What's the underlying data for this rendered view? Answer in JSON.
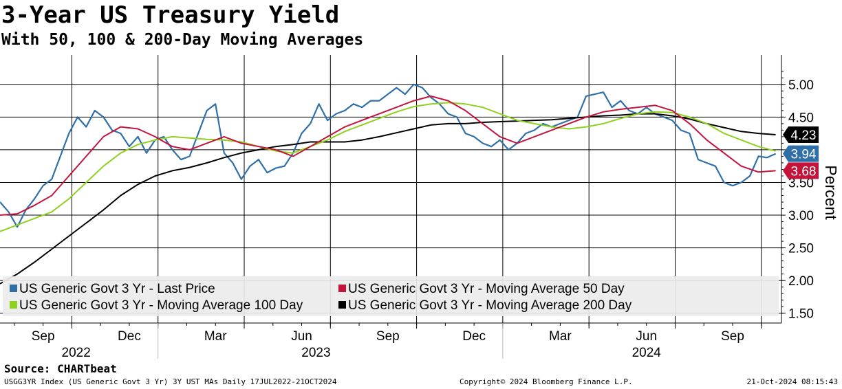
{
  "title": "3-Year US Treasury Yield",
  "subtitle": "With 50, 100 & 200-Day Moving Averages",
  "source": "Source: CHARTbeat",
  "footer": {
    "left": "USGG3YR Index (US Generic Govt 3 Yr) 3Y UST MAs  Daily 17JUL2022-21OCT2024",
    "middle": "Copyright© 2024 Bloomberg Finance L.P.",
    "right": "21-Oct-2024 08:15:43"
  },
  "chart_data": {
    "type": "line",
    "ylabel": "Percent",
    "ylim": [
      1.35,
      5.45
    ],
    "xlim": [
      0,
      27.2
    ],
    "x_unit": "months since 2022-07-17",
    "yticks": [
      1.5,
      2.0,
      2.5,
      3.0,
      3.5,
      4.0,
      4.5,
      5.0
    ],
    "ytick_labels": [
      "1.50",
      "2.00",
      "2.50",
      "3.00",
      "3.50",
      "4.00",
      "4.50",
      "5.00"
    ],
    "month_ticks": [
      {
        "label": "Sep",
        "x": 1.5
      },
      {
        "label": "Dec",
        "x": 4.5
      },
      {
        "label": "Mar",
        "x": 7.5
      },
      {
        "label": "Jun",
        "x": 10.5
      },
      {
        "label": "Sep",
        "x": 13.5
      },
      {
        "label": "Dec",
        "x": 16.5
      },
      {
        "label": "Mar",
        "x": 19.5
      },
      {
        "label": "Jun",
        "x": 22.5
      },
      {
        "label": "Sep",
        "x": 25.5
      }
    ],
    "month_gridlines": [
      2.5,
      5.5,
      8.5,
      11.5,
      14.5,
      17.5,
      20.5,
      23.5,
      26.5
    ],
    "year_labels": [
      {
        "label": "2022",
        "x": 2.65
      },
      {
        "label": "2023",
        "x": 11.0
      },
      {
        "label": "2024",
        "x": 22.5
      }
    ],
    "year_separators": [
      5.5,
      17.5
    ],
    "series": [
      {
        "name": "US Generic Govt 3 Yr  - Last Price",
        "color": "#2f6fa8",
        "last_label": "3.94",
        "points": [
          [
            0,
            3.2
          ],
          [
            0.3,
            3.05
          ],
          [
            0.6,
            2.82
          ],
          [
            0.9,
            3.08
          ],
          [
            1.2,
            3.25
          ],
          [
            1.5,
            3.45
          ],
          [
            1.8,
            3.55
          ],
          [
            2.1,
            3.9
          ],
          [
            2.4,
            4.25
          ],
          [
            2.7,
            4.5
          ],
          [
            3.0,
            4.35
          ],
          [
            3.3,
            4.6
          ],
          [
            3.6,
            4.5
          ],
          [
            3.9,
            4.3
          ],
          [
            4.2,
            4.25
          ],
          [
            4.5,
            4.05
          ],
          [
            4.8,
            4.2
          ],
          [
            5.1,
            3.95
          ],
          [
            5.4,
            4.15
          ],
          [
            5.7,
            4.2
          ],
          [
            6.0,
            4.0
          ],
          [
            6.3,
            3.85
          ],
          [
            6.6,
            3.9
          ],
          [
            6.9,
            4.25
          ],
          [
            7.2,
            4.6
          ],
          [
            7.5,
            4.7
          ],
          [
            7.8,
            3.95
          ],
          [
            8.1,
            3.8
          ],
          [
            8.4,
            3.55
          ],
          [
            8.7,
            3.75
          ],
          [
            9.0,
            3.85
          ],
          [
            9.3,
            3.65
          ],
          [
            9.6,
            3.72
          ],
          [
            9.9,
            3.75
          ],
          [
            10.2,
            3.95
          ],
          [
            10.5,
            4.25
          ],
          [
            10.8,
            4.4
          ],
          [
            11.1,
            4.7
          ],
          [
            11.4,
            4.45
          ],
          [
            11.7,
            4.55
          ],
          [
            12.0,
            4.6
          ],
          [
            12.3,
            4.7
          ],
          [
            12.6,
            4.65
          ],
          [
            12.9,
            4.75
          ],
          [
            13.2,
            4.75
          ],
          [
            13.5,
            4.85
          ],
          [
            13.8,
            4.95
          ],
          [
            14.1,
            4.85
          ],
          [
            14.4,
            5.0
          ],
          [
            14.7,
            4.95
          ],
          [
            15.0,
            4.8
          ],
          [
            15.3,
            4.7
          ],
          [
            15.6,
            4.55
          ],
          [
            15.9,
            4.5
          ],
          [
            16.2,
            4.25
          ],
          [
            16.5,
            4.2
          ],
          [
            16.8,
            4.1
          ],
          [
            17.1,
            4.05
          ],
          [
            17.4,
            4.15
          ],
          [
            17.7,
            4.0
          ],
          [
            18.0,
            4.1
          ],
          [
            18.3,
            4.25
          ],
          [
            18.6,
            4.3
          ],
          [
            18.9,
            4.4
          ],
          [
            19.2,
            4.35
          ],
          [
            19.5,
            4.4
          ],
          [
            19.8,
            4.45
          ],
          [
            20.1,
            4.5
          ],
          [
            20.4,
            4.82
          ],
          [
            20.7,
            4.85
          ],
          [
            21.0,
            4.88
          ],
          [
            21.3,
            4.65
          ],
          [
            21.6,
            4.75
          ],
          [
            21.9,
            4.6
          ],
          [
            22.2,
            4.55
          ],
          [
            22.5,
            4.65
          ],
          [
            22.8,
            4.55
          ],
          [
            23.1,
            4.5
          ],
          [
            23.4,
            4.45
          ],
          [
            23.7,
            4.3
          ],
          [
            24.0,
            4.25
          ],
          [
            24.3,
            3.85
          ],
          [
            24.6,
            3.8
          ],
          [
            24.9,
            3.75
          ],
          [
            25.2,
            3.5
          ],
          [
            25.5,
            3.45
          ],
          [
            25.8,
            3.5
          ],
          [
            26.1,
            3.6
          ],
          [
            26.4,
            3.9
          ],
          [
            26.7,
            3.88
          ],
          [
            27.0,
            3.94
          ]
        ]
      },
      {
        "name": "US Generic Govt 3 Yr  - Moving Average 50 Day",
        "color": "#c4143c",
        "last_label": "3.68",
        "points": [
          [
            0,
            3.0
          ],
          [
            0.6,
            3.02
          ],
          [
            1.2,
            3.15
          ],
          [
            1.8,
            3.3
          ],
          [
            2.4,
            3.6
          ],
          [
            3.0,
            3.9
          ],
          [
            3.6,
            4.2
          ],
          [
            4.2,
            4.35
          ],
          [
            4.8,
            4.32
          ],
          [
            5.4,
            4.2
          ],
          [
            6.0,
            4.05
          ],
          [
            6.6,
            4.0
          ],
          [
            7.2,
            4.1
          ],
          [
            7.8,
            4.2
          ],
          [
            8.4,
            4.1
          ],
          [
            9.0,
            4.05
          ],
          [
            9.6,
            4.0
          ],
          [
            10.2,
            3.9
          ],
          [
            10.8,
            4.05
          ],
          [
            11.4,
            4.2
          ],
          [
            12.0,
            4.35
          ],
          [
            12.6,
            4.45
          ],
          [
            13.2,
            4.55
          ],
          [
            13.8,
            4.65
          ],
          [
            14.4,
            4.75
          ],
          [
            15.0,
            4.82
          ],
          [
            15.6,
            4.75
          ],
          [
            16.2,
            4.6
          ],
          [
            16.8,
            4.4
          ],
          [
            17.4,
            4.2
          ],
          [
            18.0,
            4.1
          ],
          [
            18.6,
            4.2
          ],
          [
            19.2,
            4.3
          ],
          [
            19.8,
            4.4
          ],
          [
            20.4,
            4.5
          ],
          [
            21.0,
            4.58
          ],
          [
            21.6,
            4.62
          ],
          [
            22.2,
            4.65
          ],
          [
            22.8,
            4.68
          ],
          [
            23.4,
            4.6
          ],
          [
            24.0,
            4.4
          ],
          [
            24.6,
            4.15
          ],
          [
            25.2,
            3.95
          ],
          [
            25.8,
            3.75
          ],
          [
            26.4,
            3.66
          ],
          [
            27.0,
            3.68
          ]
        ]
      },
      {
        "name": "US Generic Govt 3 Yr  - Moving Average 100 Day",
        "color": "#8ed11e",
        "last_label": "",
        "points": [
          [
            0,
            2.75
          ],
          [
            0.6,
            2.85
          ],
          [
            1.2,
            2.95
          ],
          [
            1.8,
            3.05
          ],
          [
            2.4,
            3.25
          ],
          [
            3.0,
            3.5
          ],
          [
            3.6,
            3.75
          ],
          [
            4.2,
            3.95
          ],
          [
            4.8,
            4.08
          ],
          [
            5.4,
            4.15
          ],
          [
            6.0,
            4.2
          ],
          [
            6.6,
            4.18
          ],
          [
            7.2,
            4.16
          ],
          [
            7.8,
            4.15
          ],
          [
            8.4,
            4.12
          ],
          [
            9.0,
            4.05
          ],
          [
            9.6,
            3.98
          ],
          [
            10.2,
            3.95
          ],
          [
            10.8,
            4.05
          ],
          [
            11.4,
            4.15
          ],
          [
            12.0,
            4.28
          ],
          [
            12.6,
            4.38
          ],
          [
            13.2,
            4.48
          ],
          [
            13.8,
            4.58
          ],
          [
            14.4,
            4.66
          ],
          [
            15.0,
            4.7
          ],
          [
            15.6,
            4.72
          ],
          [
            16.2,
            4.7
          ],
          [
            16.8,
            4.65
          ],
          [
            17.4,
            4.55
          ],
          [
            18.0,
            4.45
          ],
          [
            18.6,
            4.4
          ],
          [
            19.2,
            4.35
          ],
          [
            19.8,
            4.32
          ],
          [
            20.4,
            4.35
          ],
          [
            21.0,
            4.4
          ],
          [
            21.6,
            4.48
          ],
          [
            22.2,
            4.55
          ],
          [
            22.8,
            4.58
          ],
          [
            23.4,
            4.57
          ],
          [
            24.0,
            4.5
          ],
          [
            24.6,
            4.4
          ],
          [
            25.2,
            4.25
          ],
          [
            25.8,
            4.15
          ],
          [
            26.4,
            4.05
          ],
          [
            27.0,
            3.98
          ]
        ]
      },
      {
        "name": "US Generic Govt 3 Yr  - Moving Average 200 Day",
        "color": "#000000",
        "last_label": "4.23",
        "points": [
          [
            0,
            1.95
          ],
          [
            0.6,
            2.1
          ],
          [
            1.2,
            2.28
          ],
          [
            1.8,
            2.48
          ],
          [
            2.4,
            2.68
          ],
          [
            3.0,
            2.88
          ],
          [
            3.6,
            3.08
          ],
          [
            4.2,
            3.3
          ],
          [
            4.8,
            3.47
          ],
          [
            5.4,
            3.6
          ],
          [
            6.0,
            3.68
          ],
          [
            6.6,
            3.73
          ],
          [
            7.2,
            3.8
          ],
          [
            7.8,
            3.88
          ],
          [
            8.4,
            3.95
          ],
          [
            9.0,
            4.0
          ],
          [
            9.6,
            4.05
          ],
          [
            10.2,
            4.08
          ],
          [
            10.8,
            4.12
          ],
          [
            11.4,
            4.12
          ],
          [
            12.0,
            4.12
          ],
          [
            12.6,
            4.15
          ],
          [
            13.2,
            4.2
          ],
          [
            13.8,
            4.26
          ],
          [
            14.4,
            4.32
          ],
          [
            15.0,
            4.38
          ],
          [
            15.6,
            4.4
          ],
          [
            16.2,
            4.4
          ],
          [
            16.8,
            4.42
          ],
          [
            17.4,
            4.43
          ],
          [
            18.0,
            4.44
          ],
          [
            18.6,
            4.45
          ],
          [
            19.2,
            4.46
          ],
          [
            19.8,
            4.48
          ],
          [
            20.4,
            4.5
          ],
          [
            21.0,
            4.52
          ],
          [
            21.6,
            4.53
          ],
          [
            22.2,
            4.55
          ],
          [
            22.8,
            4.55
          ],
          [
            23.4,
            4.52
          ],
          [
            24.0,
            4.47
          ],
          [
            24.6,
            4.4
          ],
          [
            25.2,
            4.34
          ],
          [
            25.8,
            4.28
          ],
          [
            26.4,
            4.25
          ],
          [
            27.0,
            4.23
          ]
        ]
      }
    ],
    "legend": [
      {
        "label": "US Generic Govt 3 Yr  - Last Price",
        "color": "#2f6fa8"
      },
      {
        "label": "US Generic Govt 3 Yr  - Moving Average 50 Day",
        "color": "#c4143c"
      },
      {
        "label": "US Generic Govt 3 Yr  - Moving Average 100 Day",
        "color": "#8ed11e"
      },
      {
        "label": "US Generic Govt 3 Yr  - Moving Average 200 Day",
        "color": "#000000"
      }
    ],
    "end_labels": [
      {
        "text": "4.23",
        "value": 4.23,
        "bg": "#000000",
        "fg": "#ffffff"
      },
      {
        "text": "3.94",
        "value": 3.94,
        "bg": "#2f6fa8",
        "fg": "#ffffff"
      },
      {
        "text": "3.68",
        "value": 3.68,
        "bg": "#c4143c",
        "fg": "#ffffff"
      }
    ]
  }
}
